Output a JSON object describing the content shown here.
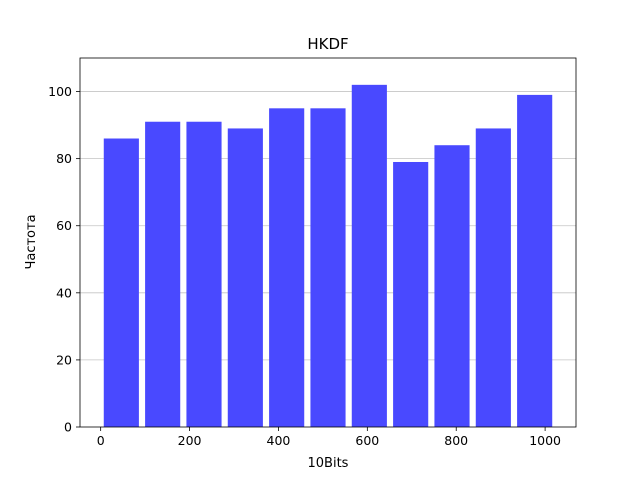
{
  "chart_data": {
    "type": "bar",
    "title": "HKDF",
    "xlabel": "10Bits",
    "ylabel": "Частота",
    "bins": [
      {
        "start": 0,
        "end": 93,
        "value": 86
      },
      {
        "start": 93,
        "end": 186,
        "value": 91
      },
      {
        "start": 186,
        "end": 279,
        "value": 91
      },
      {
        "start": 279,
        "end": 372,
        "value": 89
      },
      {
        "start": 372,
        "end": 465,
        "value": 95
      },
      {
        "start": 465,
        "end": 558,
        "value": 95
      },
      {
        "start": 558,
        "end": 651,
        "value": 102
      },
      {
        "start": 651,
        "end": 744,
        "value": 79
      },
      {
        "start": 744,
        "end": 837,
        "value": 84
      },
      {
        "start": 837,
        "end": 930,
        "value": 89
      },
      {
        "start": 930,
        "end": 1023,
        "value": 99
      }
    ],
    "bar_width_fraction": 0.85,
    "xlim": [
      -46.5,
      1069.5
    ],
    "ylim": [
      0,
      110
    ],
    "xticks": [
      0,
      200,
      400,
      600,
      800,
      1000
    ],
    "yticks": [
      0,
      20,
      40,
      60,
      80,
      100
    ],
    "grid": "y",
    "bar_color": "#4949ff",
    "grid_color": "#c4c4c4"
  }
}
